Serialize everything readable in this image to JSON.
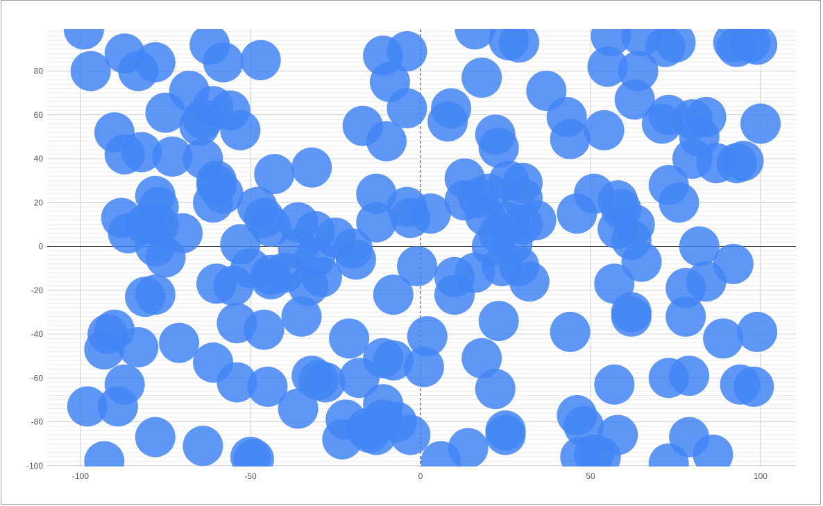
{
  "chart_data": {
    "type": "scatter",
    "title": "",
    "xlabel": "",
    "ylabel": "",
    "xlim": [
      -110,
      110
    ],
    "ylim": [
      -100,
      100
    ],
    "x_ticks": [
      -100,
      -50,
      0,
      50,
      100
    ],
    "y_ticks": [
      80,
      60,
      40,
      20,
      0,
      -20,
      -40,
      -60,
      -80,
      -100
    ],
    "x_tick_labels": [
      "-100",
      "-50",
      "0",
      "50",
      "100"
    ],
    "y_tick_labels": [
      "80",
      "60",
      "40",
      "20",
      "0",
      "-20",
      "-40",
      "-60",
      "-80",
      "-100"
    ],
    "grid": true,
    "legend": "none",
    "marker_color": "#4285f4",
    "marker_opacity": 0.85,
    "points": [
      [
        -99,
        99
      ],
      [
        -97,
        80
      ],
      [
        -87,
        88
      ],
      [
        -83,
        80
      ],
      [
        -78,
        84
      ],
      [
        -62,
        92
      ],
      [
        -58,
        84
      ],
      [
        -47,
        85
      ],
      [
        -11,
        87
      ],
      [
        -4,
        89
      ],
      [
        -9,
        75
      ],
      [
        -4,
        63
      ],
      [
        16,
        99
      ],
      [
        18,
        77
      ],
      [
        26,
        94
      ],
      [
        29,
        93
      ],
      [
        37,
        71
      ],
      [
        56,
        96
      ],
      [
        55,
        82
      ],
      [
        65,
        96
      ],
      [
        64,
        80
      ],
      [
        72,
        91
      ],
      [
        75,
        93
      ],
      [
        92,
        93
      ],
      [
        93,
        91
      ],
      [
        97,
        93
      ],
      [
        99,
        92
      ],
      [
        -90,
        52
      ],
      [
        -87,
        42
      ],
      [
        -82,
        43
      ],
      [
        -75,
        61
      ],
      [
        -68,
        71
      ],
      [
        -64,
        58
      ],
      [
        -61,
        64
      ],
      [
        -56,
        62
      ],
      [
        -53,
        53
      ],
      [
        -65,
        55
      ],
      [
        -73,
        41
      ],
      [
        -64,
        40
      ],
      [
        -17,
        55
      ],
      [
        -10,
        48
      ],
      [
        8,
        57
      ],
      [
        9,
        63
      ],
      [
        22,
        51
      ],
      [
        23,
        45
      ],
      [
        43,
        59
      ],
      [
        44,
        49
      ],
      [
        54,
        53
      ],
      [
        63,
        67
      ],
      [
        71,
        56
      ],
      [
        73,
        60
      ],
      [
        80,
        58
      ],
      [
        84,
        59
      ],
      [
        82,
        50
      ],
      [
        80,
        40
      ],
      [
        87,
        38
      ],
      [
        93,
        38
      ],
      [
        95,
        39
      ],
      [
        100,
        56
      ],
      [
        -43,
        33
      ],
      [
        -32,
        36
      ],
      [
        -60,
        28
      ],
      [
        -61,
        20
      ],
      [
        -58,
        24
      ],
      [
        -60,
        30
      ],
      [
        -78,
        23
      ],
      [
        -77,
        18
      ],
      [
        -88,
        13
      ],
      [
        -86,
        6
      ],
      [
        -81,
        10
      ],
      [
        -78,
        0
      ],
      [
        -75,
        -5
      ],
      [
        -70,
        6
      ],
      [
        -77,
        10
      ],
      [
        -48,
        18
      ],
      [
        -46,
        13
      ],
      [
        -44,
        9
      ],
      [
        -36,
        11
      ],
      [
        -31,
        7
      ],
      [
        -53,
        1
      ],
      [
        -25,
        4
      ],
      [
        -20,
        -1
      ],
      [
        -19,
        -6
      ],
      [
        -36,
        -1
      ],
      [
        -31,
        -5
      ],
      [
        -13,
        24
      ],
      [
        -13,
        11
      ],
      [
        -4,
        18
      ],
      [
        -3,
        13
      ],
      [
        3,
        15
      ],
      [
        13,
        31
      ],
      [
        13,
        21
      ],
      [
        17,
        22
      ],
      [
        19,
        14
      ],
      [
        20,
        24
      ],
      [
        21,
        0
      ],
      [
        23,
        6
      ],
      [
        26,
        11
      ],
      [
        27,
        1
      ],
      [
        30,
        10
      ],
      [
        26,
        30
      ],
      [
        30,
        29
      ],
      [
        30,
        22
      ],
      [
        34,
        12
      ],
      [
        46,
        15
      ],
      [
        51,
        24
      ],
      [
        58,
        21
      ],
      [
        59,
        17
      ],
      [
        58,
        8
      ],
      [
        63,
        10
      ],
      [
        62,
        3
      ],
      [
        73,
        28
      ],
      [
        76,
        20
      ],
      [
        82,
        0
      ],
      [
        -60,
        -17
      ],
      [
        -55,
        -18
      ],
      [
        -50,
        -10
      ],
      [
        -44,
        -13
      ],
      [
        -44,
        -15
      ],
      [
        -40,
        -12
      ],
      [
        -33,
        -18
      ],
      [
        -29,
        -14
      ],
      [
        -8,
        -22
      ],
      [
        -1,
        -9
      ],
      [
        10,
        -14
      ],
      [
        10,
        -22
      ],
      [
        16,
        -12
      ],
      [
        24,
        -9
      ],
      [
        29,
        -9
      ],
      [
        32,
        -16
      ],
      [
        57,
        -17
      ],
      [
        65,
        -7
      ],
      [
        78,
        -19
      ],
      [
        84,
        -16
      ],
      [
        92,
        -8
      ],
      [
        -81,
        -23
      ],
      [
        -78,
        -22
      ],
      [
        -35,
        -32
      ],
      [
        -54,
        -35
      ],
      [
        -46,
        -38
      ],
      [
        -92,
        -40
      ],
      [
        -90,
        -38
      ],
      [
        -93,
        -47
      ],
      [
        -83,
        -46
      ],
      [
        -71,
        -44
      ],
      [
        -61,
        -53
      ],
      [
        -54,
        -62
      ],
      [
        -45,
        -64
      ],
      [
        -21,
        -42
      ],
      [
        2,
        -41
      ],
      [
        1,
        -55
      ],
      [
        18,
        -51
      ],
      [
        23,
        -34
      ],
      [
        44,
        -39
      ],
      [
        62,
        -30
      ],
      [
        78,
        -32
      ],
      [
        99,
        -39
      ],
      [
        89,
        -42
      ],
      [
        -36,
        -74
      ],
      [
        -32,
        -59
      ],
      [
        -30,
        -61
      ],
      [
        -28,
        -62
      ],
      [
        -18,
        -60
      ],
      [
        -11,
        -51
      ],
      [
        -8,
        -52
      ],
      [
        -11,
        -72
      ],
      [
        -11,
        -79
      ],
      [
        -16,
        -83
      ],
      [
        -15,
        -85
      ],
      [
        -13,
        -86
      ],
      [
        -7,
        -80
      ],
      [
        -3,
        -86
      ],
      [
        -22,
        -79
      ],
      [
        -23,
        -88
      ],
      [
        22,
        -65
      ],
      [
        25,
        -84
      ],
      [
        25,
        -86
      ],
      [
        46,
        -77
      ],
      [
        48,
        -82
      ],
      [
        57,
        -63
      ],
      [
        58,
        -86
      ],
      [
        73,
        -60
      ],
      [
        79,
        -59
      ],
      [
        79,
        -87
      ],
      [
        94,
        -63
      ],
      [
        98,
        -64
      ],
      [
        -98,
        -73
      ],
      [
        -89,
        -73
      ],
      [
        -87,
        -63
      ],
      [
        -78,
        -87
      ],
      [
        -64,
        -91
      ],
      [
        -50,
        -96
      ],
      [
        -49,
        -97
      ],
      [
        -93,
        -98
      ],
      [
        6,
        -98
      ],
      [
        14,
        -92
      ],
      [
        47,
        -96
      ],
      [
        51,
        -95
      ],
      [
        53,
        -96
      ],
      [
        73,
        -99
      ],
      [
        86,
        -95
      ],
      [
        62,
        -32
      ]
    ]
  }
}
